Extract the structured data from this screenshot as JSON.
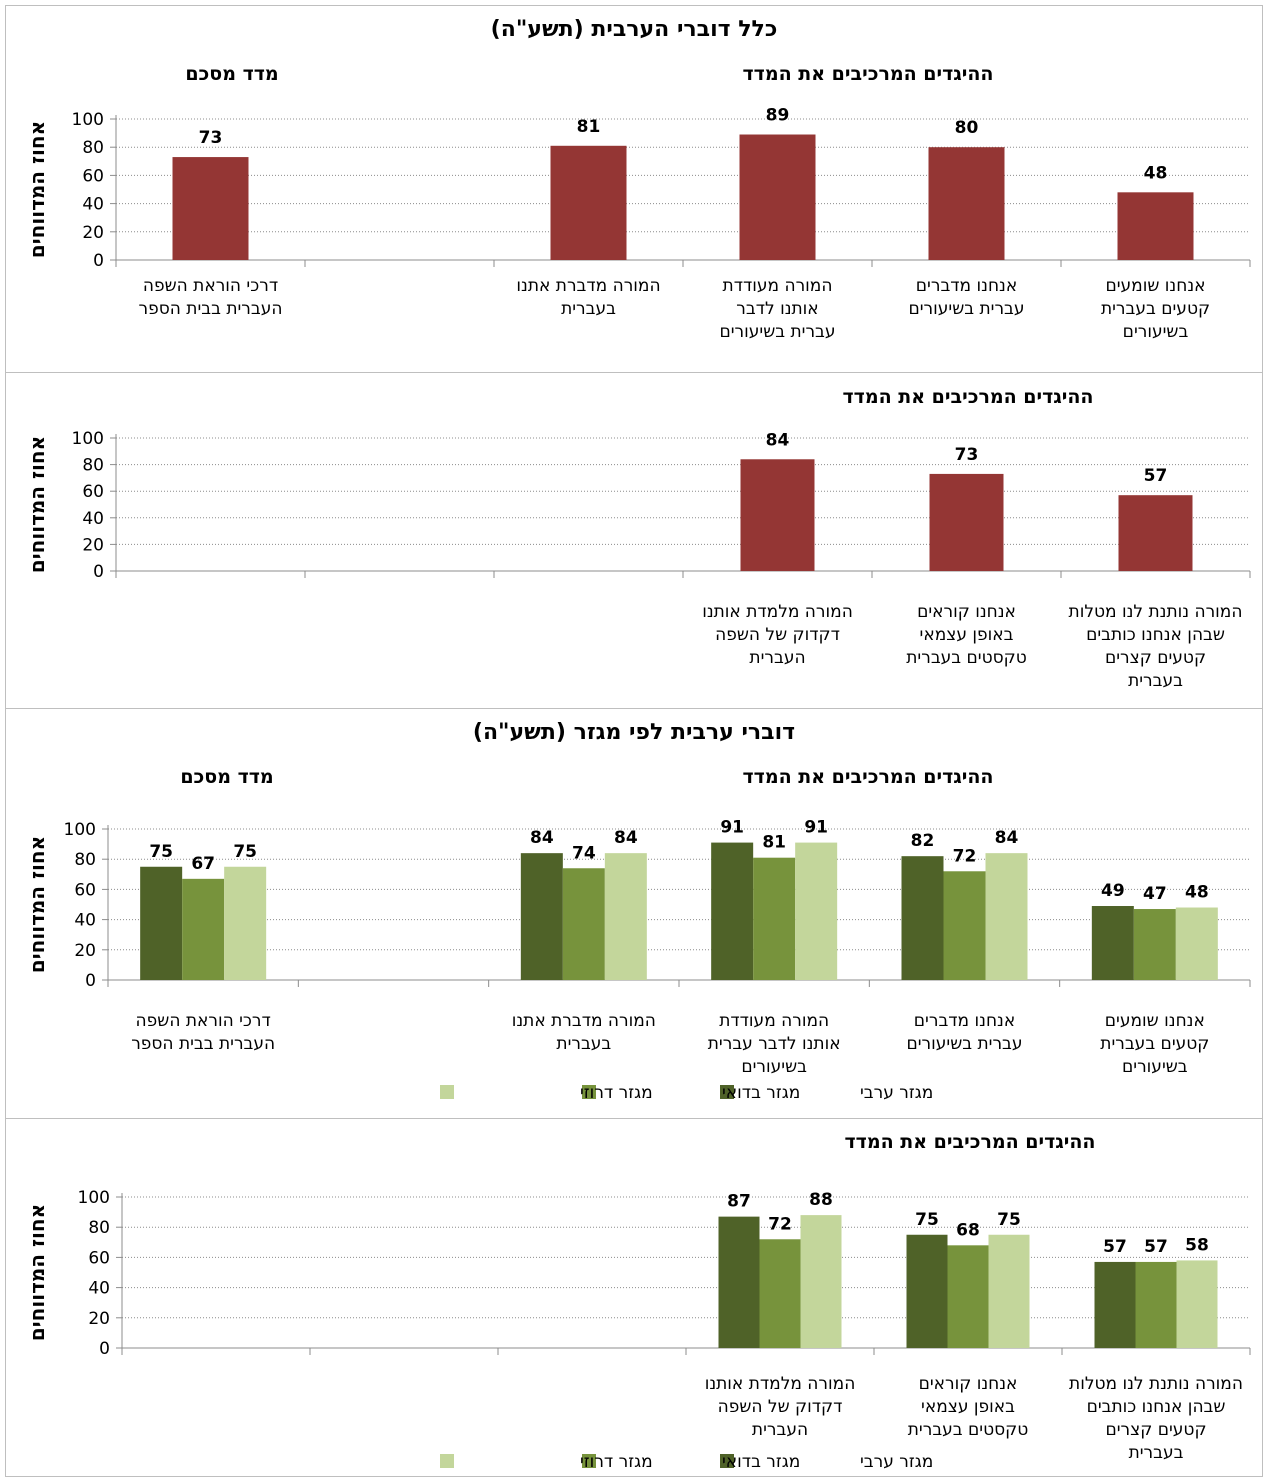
{
  "colors": {
    "single": "#943634",
    "series": [
      "#4f6228",
      "#77933c",
      "#c3d69b"
    ]
  },
  "headings": {
    "section_all": "כלל דוברי הערבית (תשע\"ה)",
    "section_sector": "דוברי ערבית לפי מגזר (תשע\"ה)",
    "items_heading": "ההיגדים המרכיבים את המדד",
    "index_heading": "מדד מסכם",
    "ylabel": "אחוז המדווחים"
  },
  "legend": [
    "מגזר ערבי",
    "מגזר בדואי",
    "מגזר דרוזי"
  ],
  "chart_data": [
    {
      "type": "bar",
      "title": "כלל דוברי הערבית (תשע\"ה)",
      "ylabel": "אחוז המדווחים",
      "ylim": [
        0,
        100
      ],
      "yticks": [
        0,
        20,
        40,
        60,
        80,
        100
      ],
      "categories": [
        [
          "אנחנו שומעים",
          "קטעים בעברית",
          "בשיעורים"
        ],
        [
          "אנחנו מדברים",
          "עברית בשיעורים"
        ],
        [
          "המורה מעודדת",
          "אותנו לדבר",
          "עברית בשיעורים"
        ],
        [
          "המורה מדברת אתנו",
          "בעברית"
        ],
        [],
        [
          "דרכי הוראת השפה",
          "העברית בבית הספר"
        ]
      ],
      "values": [
        48,
        80,
        89,
        81,
        null,
        73
      ]
    },
    {
      "type": "bar",
      "ylabel": "אחוז המדווחים",
      "ylim": [
        0,
        100
      ],
      "yticks": [
        0,
        20,
        40,
        60,
        80,
        100
      ],
      "categories": [
        [
          "המורה נותנת לנו מטלות",
          "שבהן אנחנו כותבים",
          "קטעים קצרים",
          "בעברית"
        ],
        [
          "אנחנו קוראים",
          "באופן עצמאי",
          "טקסטים בעברית"
        ],
        [
          "המורה מלמדת אותנו",
          "דקדוק של השפה",
          "העברית"
        ],
        [],
        [],
        []
      ],
      "values": [
        57,
        73,
        84,
        null,
        null,
        null
      ]
    },
    {
      "type": "bar",
      "title": "דוברי ערבית לפי מגזר (תשע\"ה)",
      "ylabel": "אחוז המדווחים",
      "ylim": [
        0,
        100
      ],
      "yticks": [
        0,
        20,
        40,
        60,
        80,
        100
      ],
      "categories": [
        [
          "אנחנו שומעים",
          "קטעים בעברית",
          "בשיעורים"
        ],
        [
          "אנחנו מדברים",
          "עברית בשיעורים"
        ],
        [
          "המורה מעודדת",
          "אותנו לדבר עברית",
          "בשיעורים"
        ],
        [
          "המורה מדברת אתנו",
          "בעברית"
        ],
        [],
        [
          "דרכי הוראת השפה",
          "העברית בבית הספר"
        ]
      ],
      "series": [
        {
          "name": "מגזר ערבי",
          "values": [
            49,
            82,
            91,
            84,
            null,
            75
          ]
        },
        {
          "name": "מגזר בדואי",
          "values": [
            47,
            72,
            81,
            74,
            null,
            67
          ]
        },
        {
          "name": "מגזר דרוזי",
          "values": [
            48,
            84,
            91,
            84,
            null,
            75
          ]
        }
      ]
    },
    {
      "type": "bar",
      "ylabel": "אחוז המדווחים",
      "ylim": [
        0,
        100
      ],
      "yticks": [
        0,
        20,
        40,
        60,
        80,
        100
      ],
      "categories": [
        [
          "המורה נותנת לנו מטלות",
          "שבהן אנחנו כותבים",
          "קטעים קצרים",
          "בעברית"
        ],
        [
          "אנחנו קוראים",
          "באופן עצמאי",
          "טקסטים בעברית"
        ],
        [
          "המורה מלמדת אותנו",
          "דקדוק של השפה",
          "העברית"
        ],
        [],
        [],
        []
      ],
      "series": [
        {
          "name": "מגזר ערבי",
          "values": [
            57,
            75,
            87,
            null,
            null,
            null
          ]
        },
        {
          "name": "מגזר בדואי",
          "values": [
            57,
            68,
            72,
            null,
            null,
            null
          ]
        },
        {
          "name": "מגזר דרוזי",
          "values": [
            58,
            75,
            88,
            null,
            null,
            null
          ]
        }
      ]
    }
  ]
}
